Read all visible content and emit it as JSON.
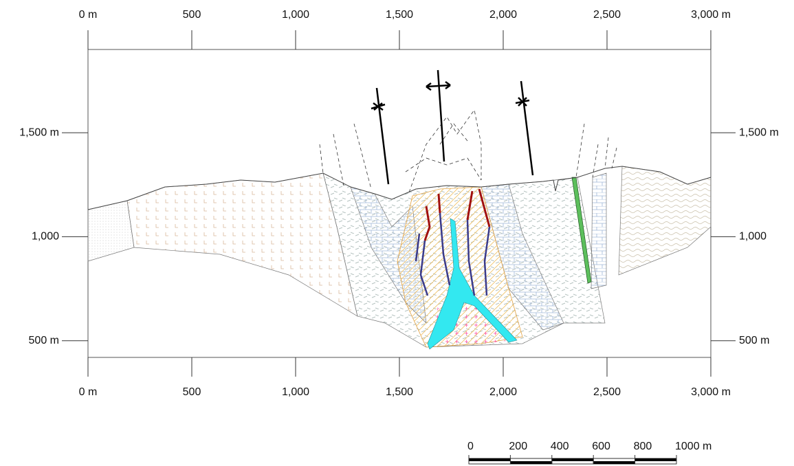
{
  "x_axis": {
    "lim": [
      0,
      3000
    ],
    "ticks": [
      {
        "value": 0,
        "label": "0 m"
      },
      500,
      {
        "value": 1000,
        "label": "1,000"
      },
      {
        "value": 1500,
        "label": "1,500"
      },
      {
        "value": 2000,
        "label": "2,000"
      },
      {
        "value": 2500,
        "label": "2,500"
      },
      {
        "value": 3000,
        "label": "3,000 m"
      }
    ]
  },
  "y_axis": {
    "lim": [
      420,
      1900
    ],
    "ticks": [
      {
        "value": 1500,
        "label": "1,500 m"
      },
      {
        "value": 1000,
        "label": "1,000"
      },
      {
        "value": 500,
        "label": "500 m"
      }
    ]
  },
  "scale_bar": {
    "lim": [
      0,
      1000
    ],
    "ticks": [
      0,
      200,
      400,
      600,
      800,
      {
        "value": 1000,
        "label": "1000 m"
      }
    ]
  }
}
